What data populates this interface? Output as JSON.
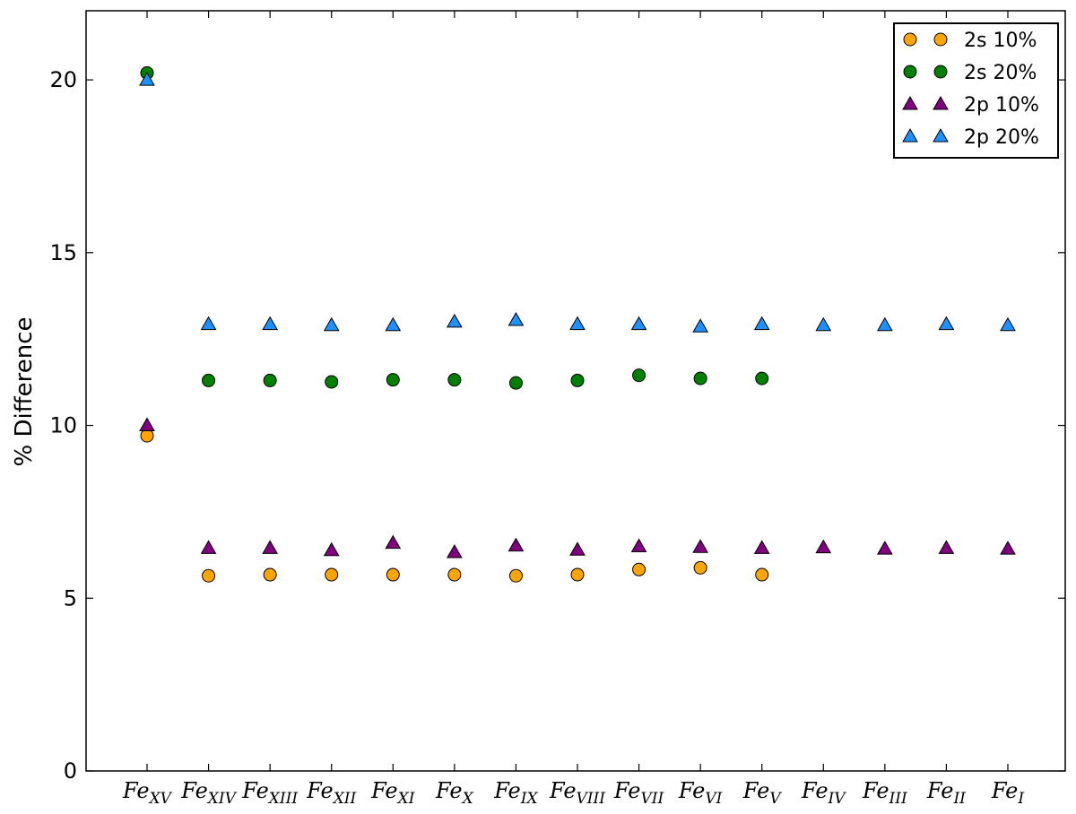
{
  "chart_data": {
    "type": "scatter",
    "title": "",
    "xlabel": "",
    "ylabel": "% Difference",
    "ylim": [
      0,
      22
    ],
    "yticks": [
      0,
      5,
      10,
      15,
      20
    ],
    "grid": false,
    "legend_position": "top-right",
    "categories": [
      {
        "base": "Fe",
        "sub": "XV"
      },
      {
        "base": "Fe",
        "sub": "XIV"
      },
      {
        "base": "Fe",
        "sub": "XIII"
      },
      {
        "base": "Fe",
        "sub": "XII"
      },
      {
        "base": "Fe",
        "sub": "XI"
      },
      {
        "base": "Fe",
        "sub": "X"
      },
      {
        "base": "Fe",
        "sub": "IX"
      },
      {
        "base": "Fe",
        "sub": "VIII"
      },
      {
        "base": "Fe",
        "sub": "VII"
      },
      {
        "base": "Fe",
        "sub": "VI"
      },
      {
        "base": "Fe",
        "sub": "V"
      },
      {
        "base": "Fe",
        "sub": "IV"
      },
      {
        "base": "Fe",
        "sub": "III"
      },
      {
        "base": "Fe",
        "sub": "II"
      },
      {
        "base": "Fe",
        "sub": "I"
      }
    ],
    "series": [
      {
        "name": "2s 10%",
        "marker": "circle",
        "color": "#FFA500",
        "values": [
          9.7,
          5.65,
          5.68,
          5.68,
          5.68,
          5.68,
          5.65,
          5.68,
          5.83,
          5.88,
          5.68,
          null,
          null,
          null,
          null
        ]
      },
      {
        "name": "2s 20%",
        "marker": "circle",
        "color": "#008000",
        "values": [
          20.2,
          11.3,
          11.3,
          11.26,
          11.32,
          11.32,
          11.23,
          11.3,
          11.45,
          11.36,
          11.36,
          null,
          null,
          null,
          null
        ]
      },
      {
        "name": "2p 10%",
        "marker": "triangle",
        "color": "#800080",
        "values": [
          10.0,
          6.45,
          6.45,
          6.39,
          6.6,
          6.33,
          6.52,
          6.4,
          6.5,
          6.48,
          6.45,
          6.47,
          6.43,
          6.45,
          6.43
        ]
      },
      {
        "name": "2p 20%",
        "marker": "triangle",
        "color": "#1E90FF",
        "values": [
          20.0,
          12.93,
          12.93,
          12.9,
          12.9,
          13.0,
          13.05,
          12.93,
          12.93,
          12.86,
          12.93,
          12.9,
          12.9,
          12.93,
          12.9
        ]
      }
    ]
  }
}
